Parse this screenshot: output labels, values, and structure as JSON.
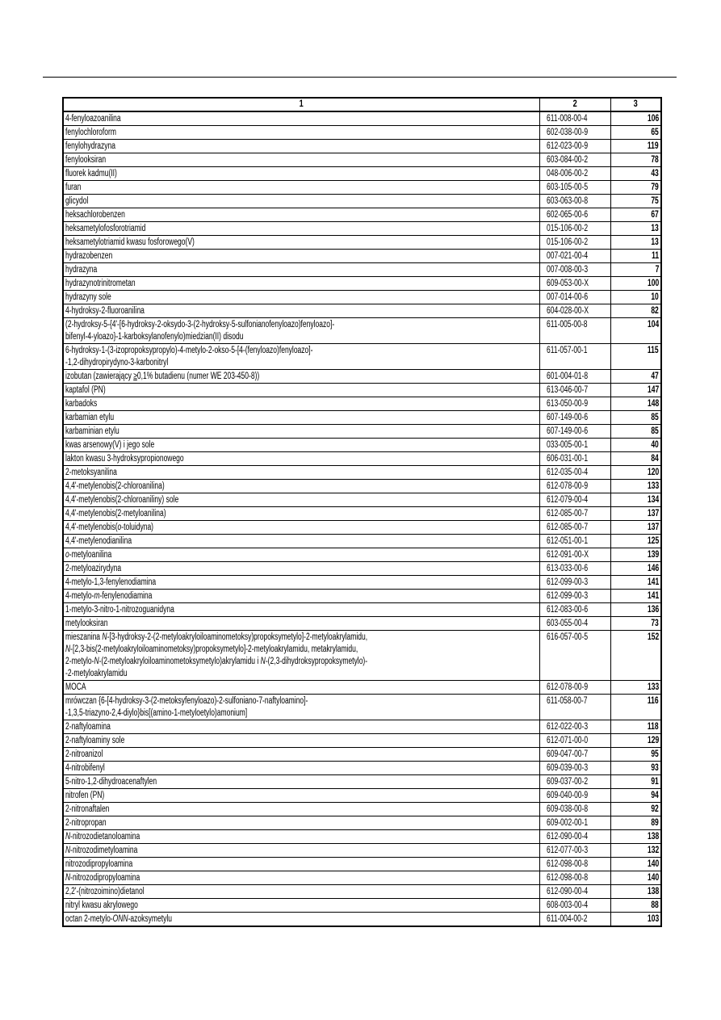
{
  "header": {
    "col1": "1",
    "col2": "2",
    "col3": "3"
  },
  "rows": [
    {
      "name": "4-fenyloazoanilina",
      "index": "611-008-00-4",
      "ref": "106"
    },
    {
      "name": "fenylochloroform",
      "index": "602-038-00-9",
      "ref": "65"
    },
    {
      "name": "fenylohydrazyna",
      "index": "612-023-00-9",
      "ref": "119"
    },
    {
      "name": "fenylooksiran",
      "index": "603-084-00-2",
      "ref": "78"
    },
    {
      "name": "fluorek kadmu(II)",
      "index": "048-006-00-2",
      "ref": "43"
    },
    {
      "name": "furan",
      "index": "603-105-00-5",
      "ref": "79"
    },
    {
      "name": "glicydol",
      "index": "603-063-00-8",
      "ref": "75"
    },
    {
      "name": "heksachlorobenzen",
      "index": "602-065-00-6",
      "ref": "67"
    },
    {
      "name": "heksametylofosforotriamid",
      "index": "015-106-00-2",
      "ref": "13"
    },
    {
      "name": "heksametylotriamid kwasu fosforowego(V)",
      "index": "015-106-00-2",
      "ref": "13"
    },
    {
      "name": "hydrazobenzen",
      "index": "007-021-00-4",
      "ref": "11"
    },
    {
      "name": "hydrazyna",
      "index": "007-008-00-3",
      "ref": "7"
    },
    {
      "name": "hydrazynotrinitrometan",
      "index": "609-053-00-X",
      "ref": "100"
    },
    {
      "name": "hydrazyny sole",
      "index": "007-014-00-6",
      "ref": "10"
    },
    {
      "name": "4-hydroksy-2-fluoroanilina",
      "index": "604-028-00-X",
      "ref": "82"
    },
    {
      "name": "(2-hydroksy-5-{4'-[6-hydroksy-2-oksydo-3-(2-hydroksy-5-sulfonianofenyloazo)fenyloazo]-\nbifenyl-4-yloazo}-1-karboksylanofenylo)miedzian(II) disodu",
      "index": "611-005-00-8",
      "ref": "104"
    },
    {
      "name": "6-hydroksy-1-(3-izopropoksypropylo)-4-metylo-2-okso-5-[4-(fenyloazo)fenyloazo]-\n-1,2-dihydropirydyno-3-karbonitryl",
      "index": "611-057-00-1",
      "ref": "115"
    },
    {
      "name": [
        {
          "t": "izobutan (zawierający "
        },
        {
          "t": "≥",
          "u": true
        },
        {
          "t": "0,1% butadienu (numer WE 203-450-8))"
        }
      ],
      "index": "601-004-01-8",
      "ref": "47"
    },
    {
      "name": "kaptafol (PN)",
      "index": "613-046-00-7",
      "ref": "147"
    },
    {
      "name": "karbadoks",
      "index": "613-050-00-9",
      "ref": "148"
    },
    {
      "name": "karbamian etylu",
      "index": "607-149-00-6",
      "ref": "85"
    },
    {
      "name": "karbaminian etylu",
      "index": "607-149-00-6",
      "ref": "85"
    },
    {
      "name": "kwas arsenowy(V) i jego sole",
      "index": "033-005-00-1",
      "ref": "40"
    },
    {
      "name": "lakton kwasu 3-hydroksypropionowego",
      "index": "606-031-00-1",
      "ref": "84"
    },
    {
      "name": "2-metoksyanilina",
      "index": "612-035-00-4",
      "ref": "120"
    },
    {
      "name": "4,4'-metylenobis(2-chloroanilina)",
      "index": "612-078-00-9",
      "ref": "133"
    },
    {
      "name": "4,4'-metylenobis(2-chloroaniliny) sole",
      "index": "612-079-00-4",
      "ref": "134"
    },
    {
      "name": "4,4'-metylenobis(2-metyloanilina)",
      "index": "612-085-00-7",
      "ref": "137"
    },
    {
      "name": [
        {
          "t": "4,4'-metylenobis("
        },
        {
          "t": "o",
          "i": true
        },
        {
          "t": "-toluidyna)"
        }
      ],
      "index": "612-085-00-7",
      "ref": "137"
    },
    {
      "name": "4,4'-metylenodianilina",
      "index": "612-051-00-1",
      "ref": "125"
    },
    {
      "name": [
        {
          "t": "o",
          "i": true
        },
        {
          "t": "-metyloanilina"
        }
      ],
      "index": "612-091-00-X",
      "ref": "139"
    },
    {
      "name": "2-metyloazirydyna",
      "index": "613-033-00-6",
      "ref": "146"
    },
    {
      "name": "4-metylo-1,3-fenylenodiamina",
      "index": "612-099-00-3",
      "ref": "141"
    },
    {
      "name": [
        {
          "t": "4-metylo-"
        },
        {
          "t": "m",
          "i": true
        },
        {
          "t": "-fenylenodiamina"
        }
      ],
      "index": "612-099-00-3",
      "ref": "141"
    },
    {
      "name": "1-metylo-3-nitro-1-nitrozoguanidyna",
      "index": "612-083-00-6",
      "ref": "136"
    },
    {
      "name": "metylooksiran",
      "index": "603-055-00-4",
      "ref": "73"
    },
    {
      "name": [
        {
          "t": "mieszanina "
        },
        {
          "t": "N",
          "i": true
        },
        {
          "t": "-[3-hydroksy-2-(2-metyloakryloiloaminometoksy)propoksymetylo]-2-metyloakrylamidu,\n"
        },
        {
          "t": "N",
          "i": true
        },
        {
          "t": "-[2,3-bis(2-metyloakryloiloaminometoksy)propoksymetylo]-2-metyloakrylamidu, metakrylamidu,\n2-metylo-"
        },
        {
          "t": "N",
          "i": true
        },
        {
          "t": "-(2-metyloakryloiloaminometoksymetylo)akrylamidu i "
        },
        {
          "t": "N",
          "i": true
        },
        {
          "t": "-(2,3-dihydroksypropoksymetylo)-\n-2-metyloakrylamidu"
        }
      ],
      "index": "616-057-00-5",
      "ref": "152"
    },
    {
      "name": "MOCA",
      "index": "612-078-00-9",
      "ref": "133"
    },
    {
      "name": "mrówczan {6-[4-hydroksy-3-(2-metoksyfenyloazo)-2-sulfoniano-7-naftyloamino]-\n-1,3,5-triazyno-2,4-diylo}bis[(amino-1-metyloetylo)amonium]",
      "index": "611-058-00-7",
      "ref": "116"
    },
    {
      "name": "2-naftyloamina",
      "index": "612-022-00-3",
      "ref": "118"
    },
    {
      "name": "2-naftyloaminy sole",
      "index": "612-071-00-0",
      "ref": "129"
    },
    {
      "name": "2-nitroanizol",
      "index": "609-047-00-7",
      "ref": "95"
    },
    {
      "name": "4-nitrobifenyl",
      "index": "609-039-00-3",
      "ref": "93"
    },
    {
      "name": "5-nitro-1,2-dihydroacenaftylen",
      "index": "609-037-00-2",
      "ref": "91"
    },
    {
      "name": "nitrofen (PN)",
      "index": "609-040-00-9",
      "ref": "94"
    },
    {
      "name": "2-nitronaftalen",
      "index": "609-038-00-8",
      "ref": "92"
    },
    {
      "name": "2-nitropropan",
      "index": "609-002-00-1",
      "ref": "89"
    },
    {
      "name": [
        {
          "t": "N",
          "i": true
        },
        {
          "t": "-nitrozodietanoloamina"
        }
      ],
      "index": "612-090-00-4",
      "ref": "138"
    },
    {
      "name": [
        {
          "t": "N",
          "i": true
        },
        {
          "t": "-nitrozodimetyloamina"
        }
      ],
      "index": "612-077-00-3",
      "ref": "132"
    },
    {
      "name": "nitrozodipropyloamina",
      "index": "612-098-00-8",
      "ref": "140"
    },
    {
      "name": [
        {
          "t": "N",
          "i": true
        },
        {
          "t": "-nitrozodipropyloamina"
        }
      ],
      "index": "612-098-00-8",
      "ref": "140"
    },
    {
      "name": "2,2'-(nitrozoimino)dietanol",
      "index": "612-090-00-4",
      "ref": "138"
    },
    {
      "name": "nitryl kwasu akrylowego",
      "index": "608-003-00-4",
      "ref": "88"
    },
    {
      "name": [
        {
          "t": "octan 2-metylo-"
        },
        {
          "t": "ONN",
          "i": true
        },
        {
          "t": "-azoksymetylu"
        }
      ],
      "index": "611-004-00-2",
      "ref": "103"
    }
  ]
}
